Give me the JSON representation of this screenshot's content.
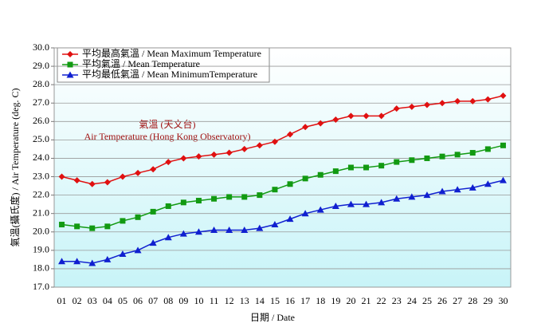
{
  "chart_data": {
    "type": "line",
    "x_label": "日期 / Date",
    "y_label": "氣溫(攝氏度) / Air Temperature (deg. C)",
    "annotations": [
      "氣溫 (天文台)",
      "Air Temperature (Hong Kong Observatory)"
    ],
    "categories": [
      "01",
      "02",
      "03",
      "04",
      "05",
      "06",
      "07",
      "08",
      "09",
      "10",
      "11",
      "12",
      "13",
      "14",
      "15",
      "16",
      "17",
      "18",
      "19",
      "20",
      "21",
      "22",
      "23",
      "24",
      "25",
      "26",
      "27",
      "28",
      "29",
      "30"
    ],
    "series": [
      {
        "name": "平均最高氣溫 / Mean Maximum Temperature",
        "color": "#e01010",
        "marker": "diamond",
        "values": [
          23.0,
          22.8,
          22.6,
          22.7,
          23.0,
          23.2,
          23.4,
          23.8,
          24.0,
          24.1,
          24.2,
          24.3,
          24.5,
          24.7,
          24.9,
          25.3,
          25.7,
          25.9,
          26.1,
          26.3,
          26.3,
          26.3,
          26.7,
          26.8,
          26.9,
          27.0,
          27.1,
          27.1,
          27.2,
          27.4
        ]
      },
      {
        "name": "平均氣溫 / Mean Temperature",
        "color": "#129a12",
        "marker": "square",
        "values": [
          20.4,
          20.3,
          20.2,
          20.3,
          20.6,
          20.8,
          21.1,
          21.4,
          21.6,
          21.7,
          21.8,
          21.9,
          21.9,
          22.0,
          22.3,
          22.6,
          22.9,
          23.1,
          23.3,
          23.5,
          23.5,
          23.6,
          23.8,
          23.9,
          24.0,
          24.1,
          24.2,
          24.3,
          24.5,
          24.7
        ]
      },
      {
        "name": "平均最低氣溫 / Mean MinimumTemperature",
        "color": "#1020d0",
        "marker": "triangle",
        "values": [
          18.4,
          18.4,
          18.3,
          18.5,
          18.8,
          19.0,
          19.4,
          19.7,
          19.9,
          20.0,
          20.1,
          20.1,
          20.1,
          20.2,
          20.4,
          20.7,
          21.0,
          21.2,
          21.4,
          21.5,
          21.5,
          21.6,
          21.8,
          21.9,
          22.0,
          22.2,
          22.3,
          22.4,
          22.6,
          22.8
        ]
      }
    ],
    "ylim": [
      17,
      30
    ],
    "yticks": [
      {
        "value": 17,
        "label": "17.0"
      },
      {
        "value": 18,
        "label": "18.0"
      },
      {
        "value": 19,
        "label": "19.0"
      },
      {
        "value": 20,
        "label": "20.0"
      },
      {
        "value": 21,
        "label": "21.0"
      },
      {
        "value": 22,
        "label": "22.0"
      },
      {
        "value": 23,
        "label": "23.0"
      },
      {
        "value": 24,
        "label": "24.0"
      },
      {
        "value": 25,
        "label": "25.0"
      },
      {
        "value": 26,
        "label": "26.0"
      },
      {
        "value": 27,
        "label": "27.0"
      },
      {
        "value": 28,
        "label": "28.0"
      },
      {
        "value": 29,
        "label": "29.0"
      },
      {
        "value": 30,
        "label": "30.0"
      }
    ],
    "grid": true,
    "legend": "top-left"
  }
}
